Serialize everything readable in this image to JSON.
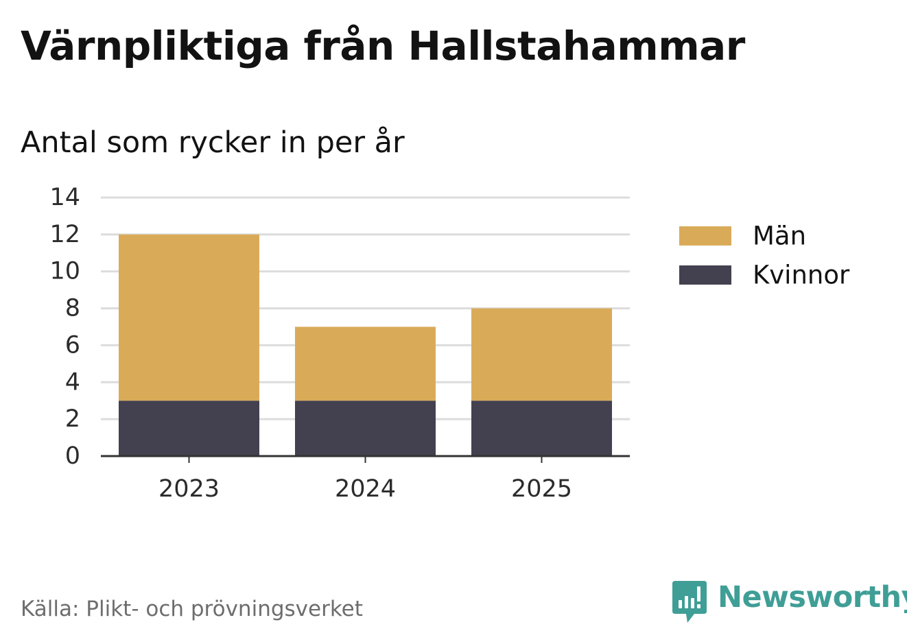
{
  "title": "Värnpliktiga från Hallstahammar",
  "subtitle": "Antal som rycker in per år",
  "source": "Källa: Plikt- och prövningsverket",
  "brand": "Newsworthy",
  "colors": {
    "man": "#d9ab59",
    "kvinnor": "#43404f",
    "grid": "#dcdcdc",
    "axis": "#333333",
    "brand": "#3f9e96"
  },
  "chart_data": {
    "type": "bar",
    "stacked": true,
    "categories": [
      "2023",
      "2024",
      "2025"
    ],
    "series": [
      {
        "name": "Kvinnor",
        "values": [
          3,
          3,
          3
        ],
        "color": "#43404f"
      },
      {
        "name": "Män",
        "values": [
          9,
          4,
          5
        ],
        "color": "#d9ab59"
      }
    ],
    "legend": [
      "Män",
      "Kvinnor"
    ],
    "legend_position": "right",
    "title": "Värnpliktiga från Hallstahammar",
    "subtitle": "Antal som rycker in per år",
    "xlabel": "",
    "ylabel": "",
    "ylim": [
      0,
      14
    ],
    "yticks": [
      0,
      2,
      4,
      6,
      8,
      10,
      12,
      14
    ],
    "grid": true
  }
}
